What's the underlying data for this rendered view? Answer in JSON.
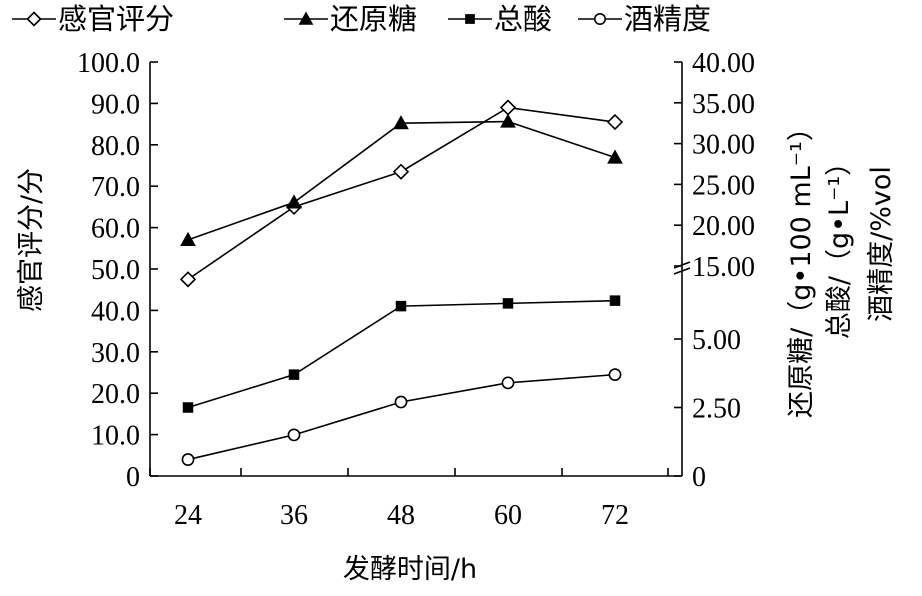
{
  "chart_data": {
    "type": "line",
    "xlabel": "发酵时间/h",
    "categories": [
      "24",
      "36",
      "48",
      "60",
      "72"
    ],
    "left_axis": {
      "label": "感官评分/分",
      "ylim": [
        0,
        100
      ],
      "ticks": [
        "0",
        "10.0",
        "20.0",
        "30.0",
        "40.0",
        "50.0",
        "60.0",
        "70.0",
        "80.0",
        "90.0",
        "100.0"
      ]
    },
    "right_axis": {
      "labels": [
        "还原糖/（g•100 mL⁻¹）",
        "总酸/（g•L⁻¹）",
        "酒精度/%vol"
      ],
      "scale": "broken",
      "lower_ticks": [
        "0",
        "2.50",
        "5.00"
      ],
      "upper_ticks": [
        "15.00",
        "20.00",
        "25.00",
        "30.00",
        "35.00",
        "40.00"
      ]
    },
    "legend_position": "top",
    "series": [
      {
        "name": "感官评分",
        "axis": "left",
        "marker": "diamond-open",
        "values": [
          47.5,
          65,
          73.5,
          89,
          85.5
        ]
      },
      {
        "name": "还原糖",
        "axis": "right",
        "marker": "triangle-filled",
        "values": [
          18.2,
          22.8,
          32.5,
          32.7,
          28.3
        ]
      },
      {
        "name": "总酸",
        "axis": "right",
        "marker": "square-filled",
        "values": [
          2.5,
          3.7,
          6.2,
          6.3,
          6.4
        ]
      },
      {
        "name": "酒精度",
        "axis": "right",
        "marker": "circle-open",
        "values": [
          0.6,
          1.5,
          2.7,
          3.4,
          3.7
        ]
      }
    ]
  }
}
